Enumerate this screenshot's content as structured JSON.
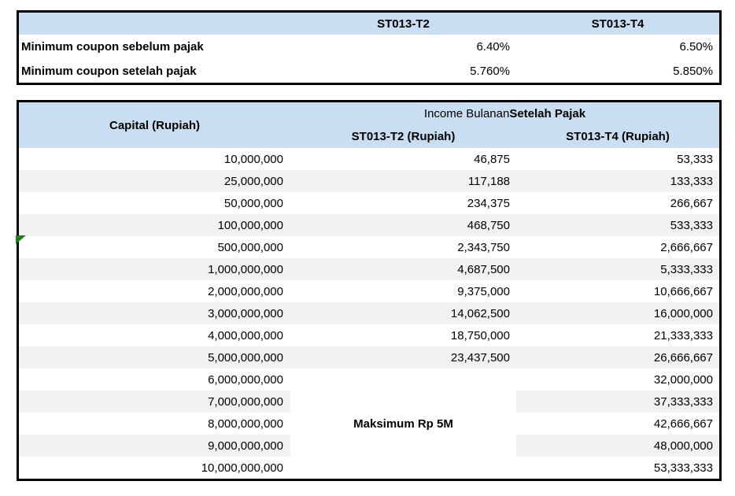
{
  "colors": {
    "header_blue": "#C9DEF1",
    "stripe_gray": "#F1F1F1",
    "border_black": "#000000",
    "flag_green": "#1E7E1E"
  },
  "summary_table": {
    "header": {
      "col1": "",
      "col2": "ST013-T2",
      "col3": "ST013-T4"
    },
    "rows": [
      {
        "label": "Minimum coupon sebelum pajak",
        "st013_t2": "6.40%",
        "st013_t4": "6.50%"
      },
      {
        "label": "Minimum coupon setelah pajak",
        "st013_t2": "5.760%",
        "st013_t4": "5.850%"
      }
    ]
  },
  "income_table": {
    "capital_header": "Capital (Rupiah)",
    "group_header": {
      "regular": "Income Bulanan ",
      "bold": "Setelah Pajak"
    },
    "sub_header_t2": "ST013-T2 (Rupiah)",
    "sub_header_t4": "ST013-T4 (Rupiah)",
    "max_note": "Maksimum Rp 5M",
    "merged_from_index": 10,
    "error_flag_row_index": 4,
    "rows": [
      {
        "capital": "10,000,000",
        "t2": "46,875",
        "t4": "53,333"
      },
      {
        "capital": "25,000,000",
        "t2": "117,188",
        "t4": "133,333"
      },
      {
        "capital": "50,000,000",
        "t2": "234,375",
        "t4": "266,667"
      },
      {
        "capital": "100,000,000",
        "t2": "468,750",
        "t4": "533,333"
      },
      {
        "capital": "500,000,000",
        "t2": "2,343,750",
        "t4": "2,666,667"
      },
      {
        "capital": "1,000,000,000",
        "t2": "4,687,500",
        "t4": "5,333,333"
      },
      {
        "capital": "2,000,000,000",
        "t2": "9,375,000",
        "t4": "10,666,667"
      },
      {
        "capital": "3,000,000,000",
        "t2": "14,062,500",
        "t4": "16,000,000"
      },
      {
        "capital": "4,000,000,000",
        "t2": "18,750,000",
        "t4": "21,333,333"
      },
      {
        "capital": "5,000,000,000",
        "t2": "23,437,500",
        "t4": "26,666,667"
      },
      {
        "capital": "6,000,000,000",
        "t2": "",
        "t4": "32,000,000"
      },
      {
        "capital": "7,000,000,000",
        "t2": "",
        "t4": "37,333,333"
      },
      {
        "capital": "8,000,000,000",
        "t2": "",
        "t4": "42,666,667"
      },
      {
        "capital": "9,000,000,000",
        "t2": "",
        "t4": "48,000,000"
      },
      {
        "capital": "10,000,000,000",
        "t2": "",
        "t4": "53,333,333"
      }
    ]
  }
}
